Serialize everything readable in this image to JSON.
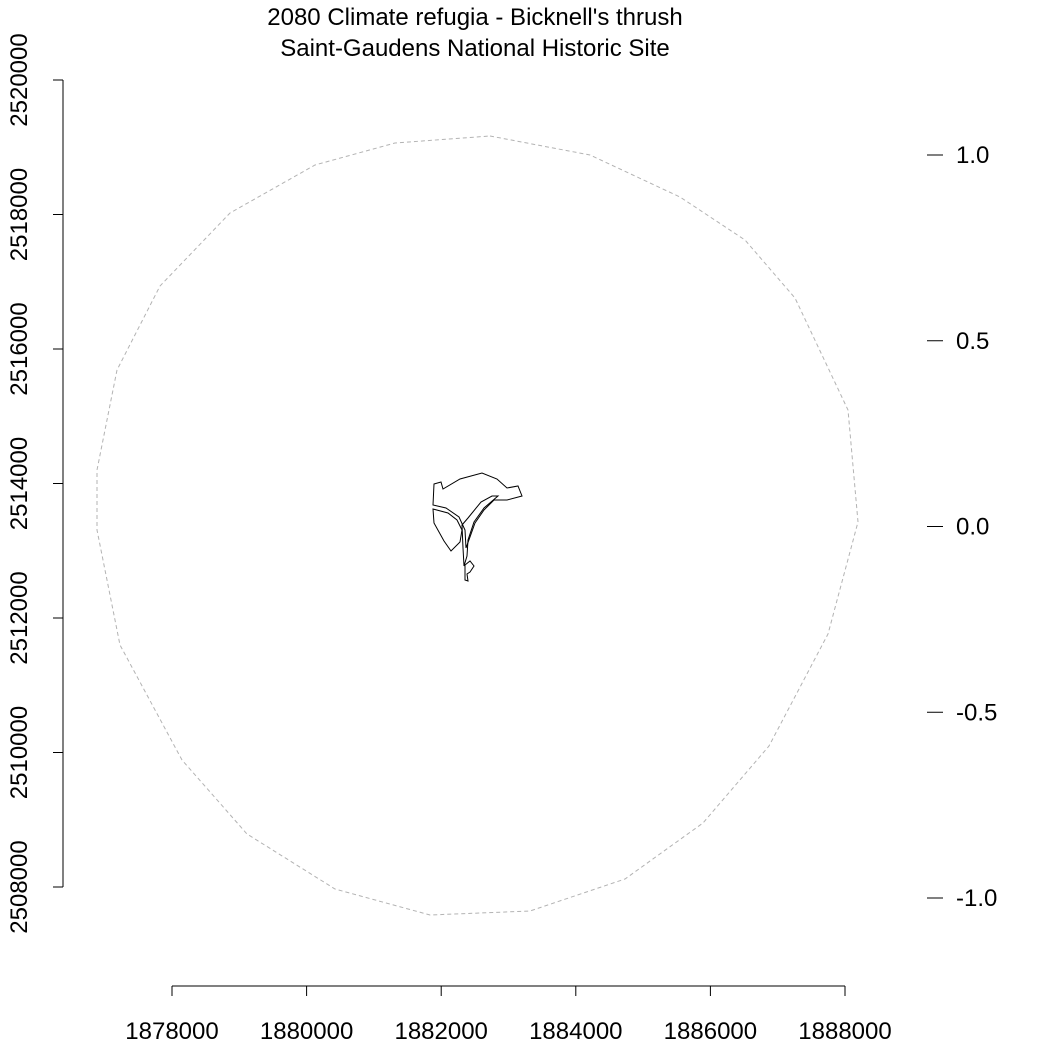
{
  "map": {
    "title": "2080 Climate refugia - Bicknell's thrush",
    "subtitle": "Saint-Gaudens National Historic Site",
    "x_axis": {
      "ticks": [
        "1878000",
        "1880000",
        "1882000",
        "1884000",
        "1886000",
        "1888000"
      ],
      "range": [
        1878000,
        1888000
      ]
    },
    "y_axis_left": {
      "ticks": [
        "2508000",
        "2510000",
        "2512000",
        "2514000",
        "2516000",
        "2518000",
        "2520000"
      ],
      "range": [
        2508000,
        2520000
      ]
    },
    "y_axis_right": {
      "ticks": [
        "-1.0",
        "-0.5",
        "0.0",
        "0.5",
        "1.0"
      ],
      "range": [
        -1.0,
        1.0
      ]
    },
    "layers": [
      {
        "name": "buffer circle",
        "style": "dashed",
        "color": "#b3b3b3"
      },
      {
        "name": "park boundary",
        "style": "solid",
        "color": "#000000"
      }
    ]
  }
}
